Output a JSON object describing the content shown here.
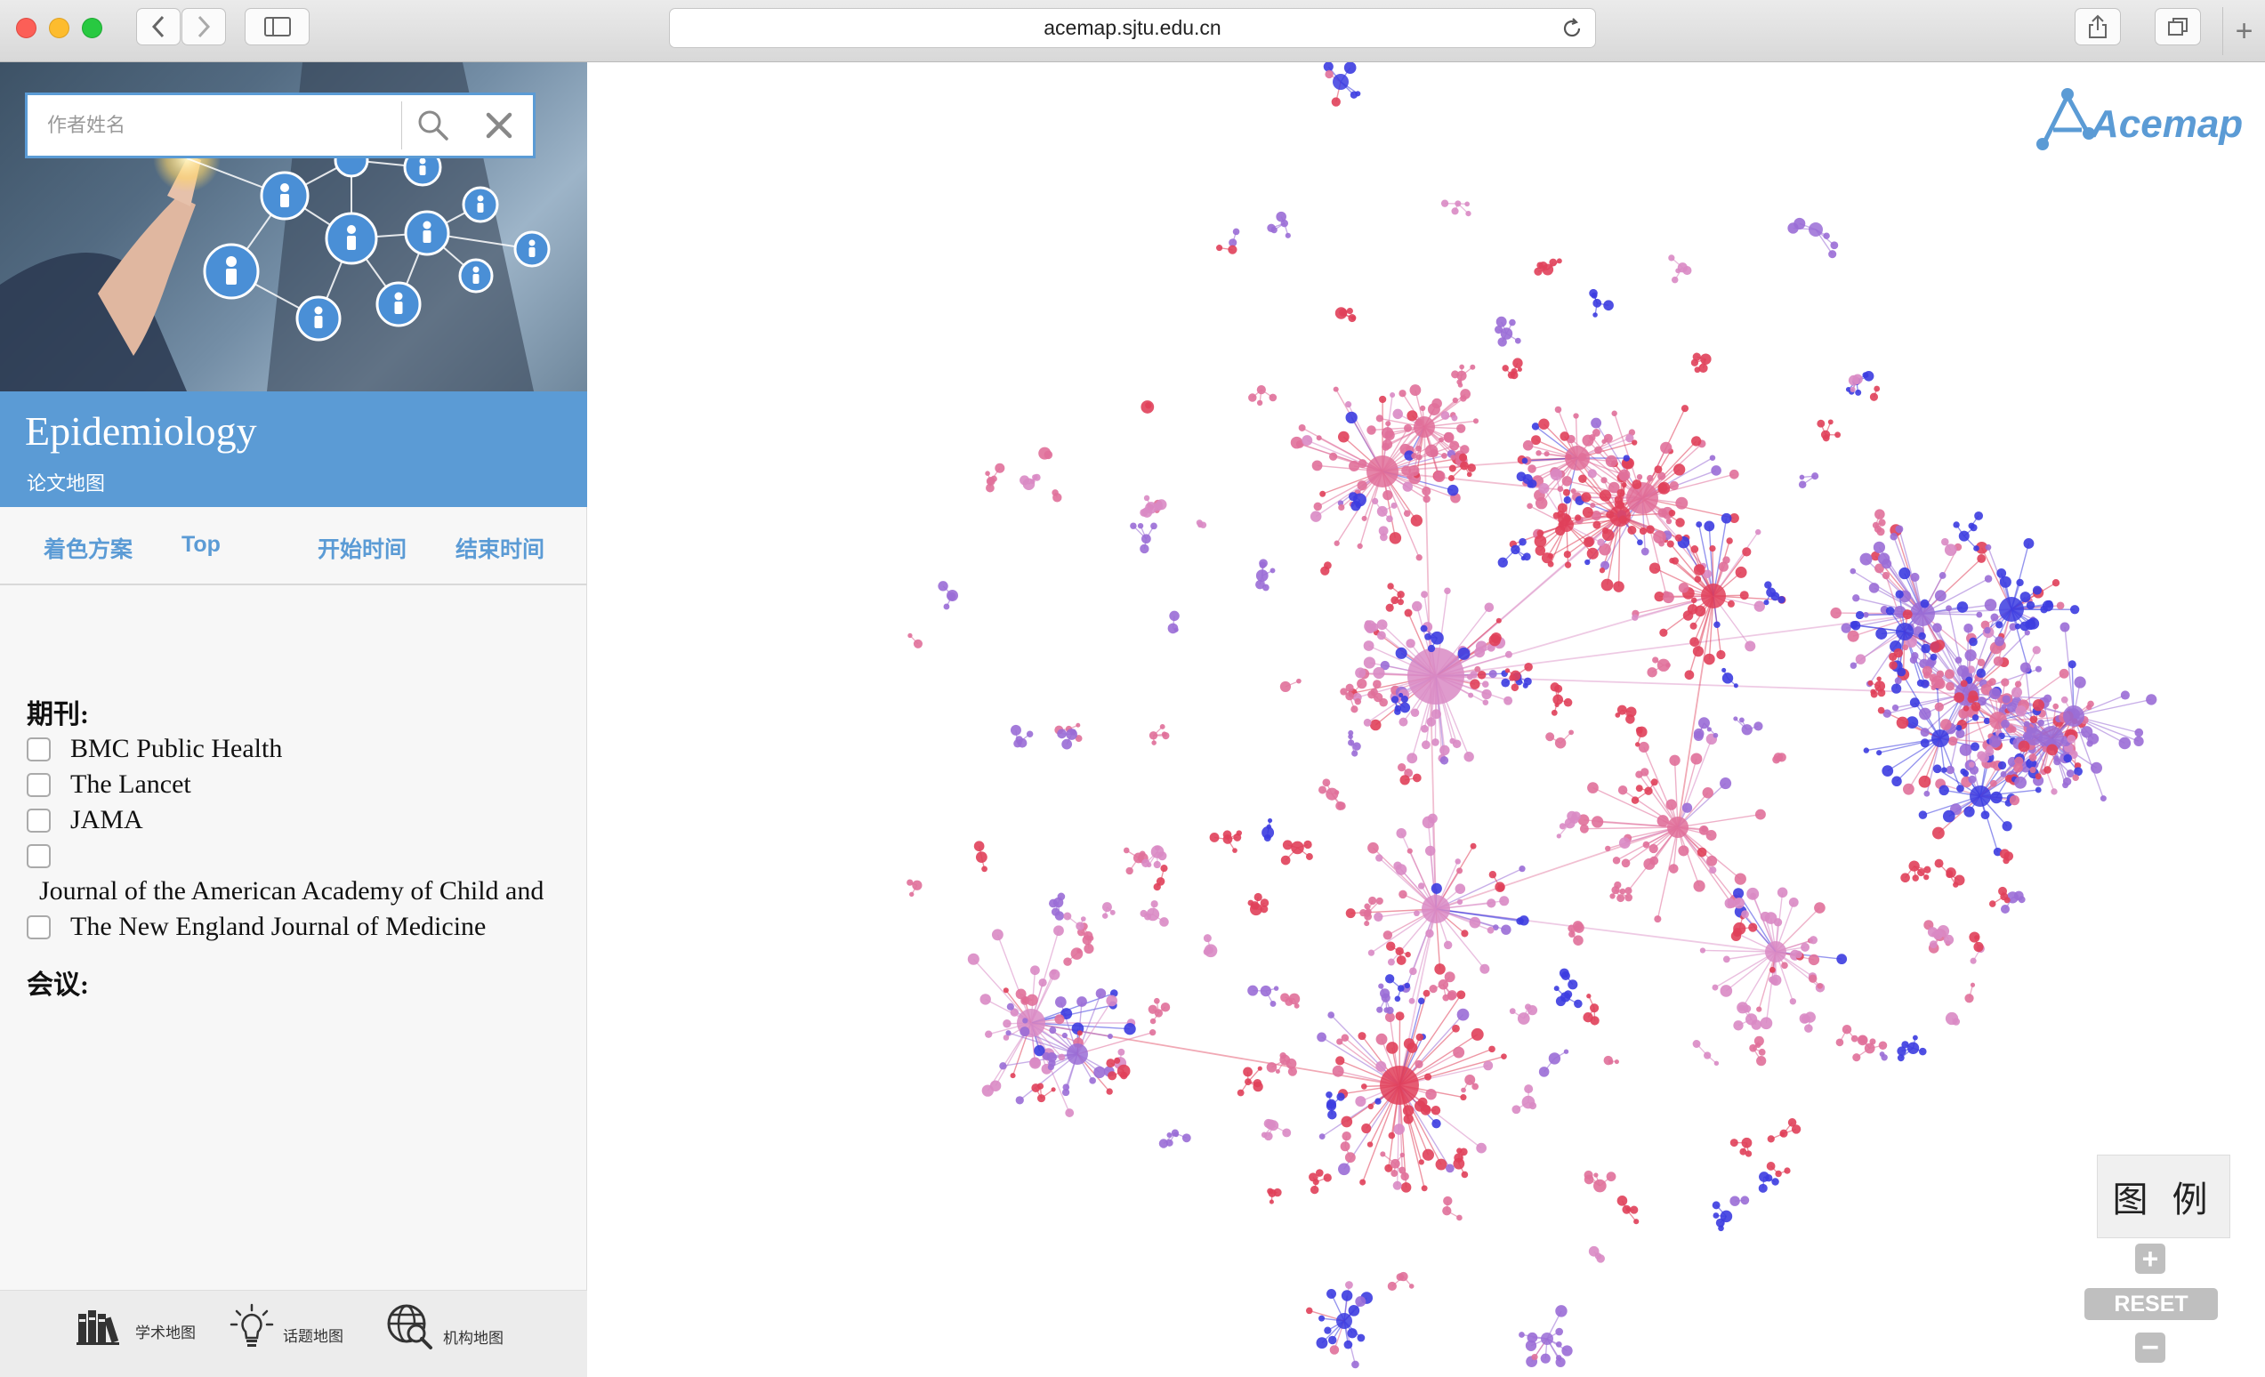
{
  "browser": {
    "url": "acemap.sjtu.edu.cn"
  },
  "search": {
    "placeholder": "作者姓名"
  },
  "header": {
    "title": "Epidemiology",
    "subtitle": "论文地图"
  },
  "filters": {
    "tabs": [
      {
        "label": "着色方案"
      },
      {
        "label": "Top"
      },
      {
        "label": "开始时间"
      },
      {
        "label": "结束时间"
      }
    ]
  },
  "journals": {
    "heading": "期刊:",
    "items": [
      {
        "label": "BMC Public Health"
      },
      {
        "label": "The Lancet"
      },
      {
        "label": "JAMA"
      },
      {
        "label": ""
      },
      {
        "label": "Journal of the American Academy of Child and"
      },
      {
        "label": "The New England Journal of Medicine"
      }
    ]
  },
  "conferences": {
    "heading": "会议:"
  },
  "footer_nav": {
    "items": [
      {
        "label": "学术地图",
        "icon": "books-icon"
      },
      {
        "label": "话题地图",
        "icon": "lightbulb-icon"
      },
      {
        "label": "机构地图",
        "icon": "globe-search-icon"
      }
    ]
  },
  "map": {
    "logo_text": "Acemap",
    "legend_label": "图 例",
    "reset_label": "RESET",
    "zoom_in_label": "+",
    "zoom_out_label": "−",
    "colors": {
      "red": "#e0405a",
      "pink": "#e0709a",
      "lightpink": "#d98ac4",
      "violet": "#9a6dd6",
      "blue": "#3c3ce0",
      "accent": "#5b9bd5"
    }
  }
}
